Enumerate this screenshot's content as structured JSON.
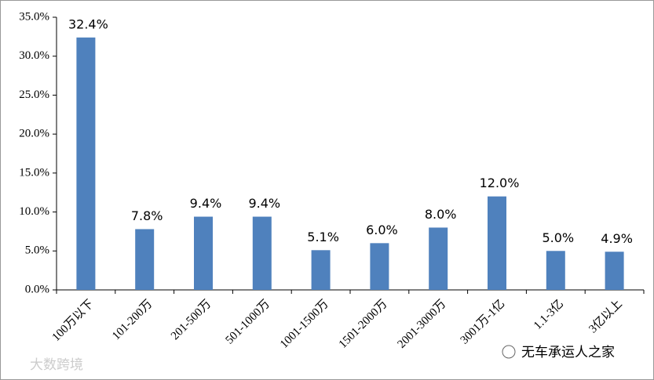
{
  "chart_data": {
    "type": "bar",
    "categories": [
      "100万以下",
      "101-200万",
      "201-500万",
      "501-1000万",
      "1001-1500万",
      "1501-2000万",
      "2001-3000万",
      "3001万-1亿",
      "1.1-3亿",
      "3亿以上"
    ],
    "values": [
      32.4,
      7.8,
      9.4,
      9.4,
      5.1,
      6.0,
      8.0,
      12.0,
      5.0,
      4.9
    ],
    "value_labels": [
      "32.4%",
      "7.8%",
      "9.4%",
      "9.4%",
      "5.1%",
      "6.0%",
      "8.0%",
      "12.0%",
      "5.0%",
      "4.9%"
    ],
    "color": "#4f81bd",
    "ylim": [
      0,
      35
    ],
    "yticks": [
      {
        "value": 0,
        "label": "0.0%"
      },
      {
        "value": 5,
        "label": "5.0%"
      },
      {
        "value": 10,
        "label": "10.0%"
      },
      {
        "value": 15,
        "label": "15.0%"
      },
      {
        "value": 20,
        "label": "20.0%"
      },
      {
        "value": 25,
        "label": "25.0%"
      },
      {
        "value": 30,
        "label": "30.0%"
      },
      {
        "value": 35,
        "label": "35.0%"
      }
    ],
    "grid": false
  },
  "watermarks": [
    "大数跨境",
    "无车承运人之家"
  ]
}
